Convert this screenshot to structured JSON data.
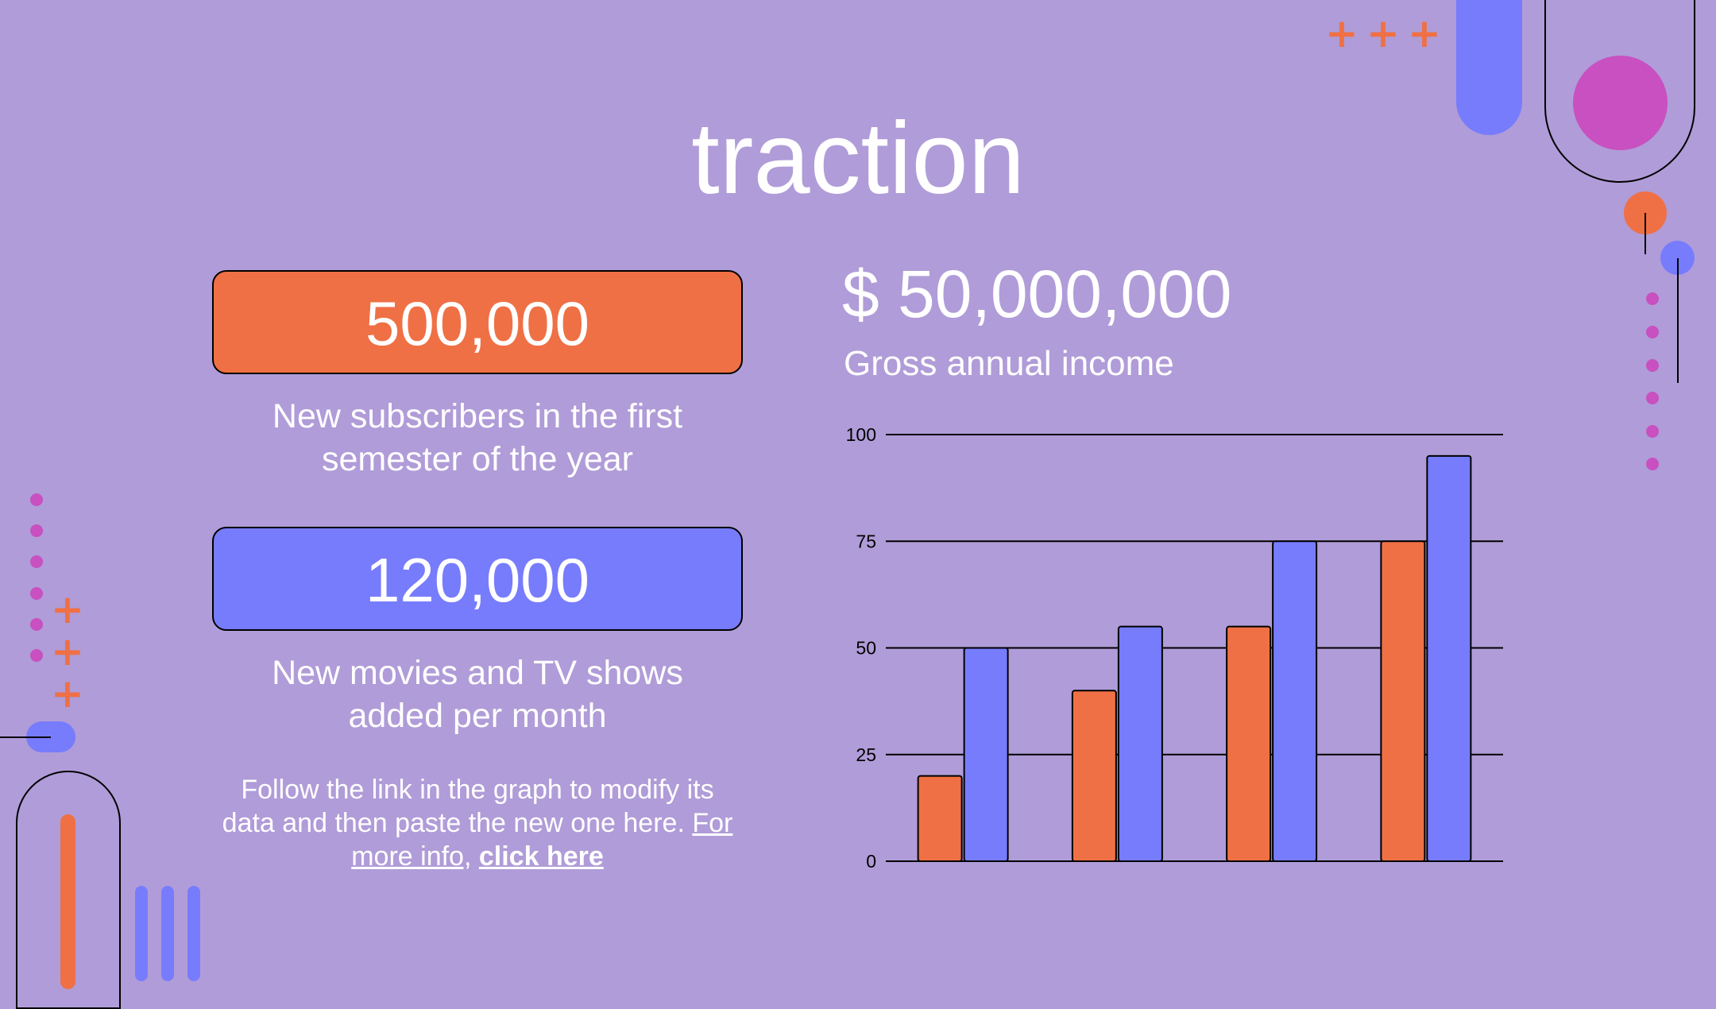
{
  "slide": {
    "title": "traction",
    "stat1": {
      "value": "500,000",
      "label_line1": "New subscribers in the first",
      "label_line2": "semester of the year"
    },
    "stat2": {
      "value": "120,000",
      "label_line1": "New movies and TV shows",
      "label_line2": "added per month"
    },
    "note": {
      "line1": "Follow the link in the graph to modify its",
      "line2": "data and then paste the new one here.",
      "link1": "For",
      "link2": "more info,",
      "link3": "click here"
    },
    "income": {
      "amount": "$ 50,000,000",
      "label": "Gross annual income"
    }
  },
  "colors": {
    "background": "#b09cd8",
    "orange": "#ef7045",
    "blue": "#777cfc",
    "magenta": "#c850c0"
  },
  "chart_data": {
    "type": "bar",
    "categories": [
      "",
      "",
      "",
      ""
    ],
    "series": [
      {
        "values": [
          20,
          40,
          55,
          75
        ],
        "color": "#ef7045"
      },
      {
        "values": [
          50,
          55,
          75,
          95
        ],
        "color": "#777cfc"
      }
    ],
    "ylim": [
      0,
      100
    ],
    "yticks": [
      0,
      25,
      50,
      75,
      100
    ],
    "grid": true
  }
}
